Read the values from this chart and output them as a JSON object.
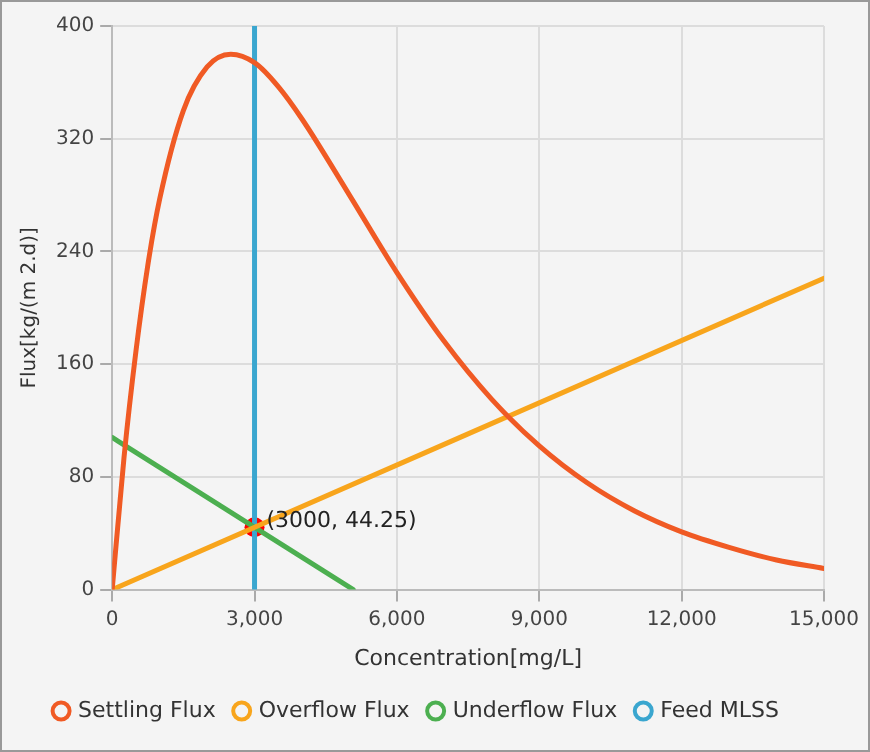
{
  "chart_data": {
    "type": "line",
    "xlabel": "Concentration[mg/L]",
    "ylabel": "Flux[kg/(m 2.d)]",
    "xlim": [
      0,
      15000
    ],
    "ylim": [
      0,
      400
    ],
    "xticks": [
      0,
      {
        "value": 3000,
        "label": "3,000"
      },
      {
        "value": 6000,
        "label": "6,000"
      },
      {
        "value": 9000,
        "label": "9,000"
      },
      {
        "value": 12000,
        "label": "12,000"
      },
      {
        "value": 15000,
        "label": "15,000"
      }
    ],
    "yticks": [
      0,
      80,
      160,
      240,
      320,
      400
    ],
    "grid": true,
    "legend": "bottom",
    "marker": "none",
    "line_style": "solid",
    "series": [
      {
        "name": "Settling Flux",
        "color": "#f05a24",
        "type": "line",
        "x": [
          0,
          250,
          500,
          750,
          1000,
          1500,
          2000,
          2500,
          3000,
          3500,
          4000,
          5000,
          6000,
          7000,
          8000,
          9000,
          10000,
          11000,
          12000,
          13000,
          14000,
          15000
        ],
        "values": [
          0,
          94,
          169,
          230,
          277,
          340,
          371,
          380,
          374,
          357,
          334,
          280,
          225,
          176,
          135,
          102,
          76,
          56,
          41,
          30,
          21,
          15
        ]
      },
      {
        "name": "Overflow Flux",
        "color": "#f8a51c",
        "type": "line",
        "x": [
          0,
          15000
        ],
        "values": [
          0,
          221
        ]
      },
      {
        "name": "Underflow Flux",
        "color": "#4caf50",
        "type": "line",
        "x": [
          0,
          5080
        ],
        "values": [
          108,
          0
        ]
      },
      {
        "name": "Feed MLSS",
        "color": "#3aa6cf",
        "type": "line",
        "x": [
          3000,
          3000
        ],
        "values": [
          0,
          400
        ]
      },
      {
        "color": "#ff0000",
        "type": "scatter",
        "marker": "circle",
        "x": [
          3000
        ],
        "values": [
          44.25
        ],
        "value_labels": [
          "(3000, 44.25)"
        ]
      }
    ]
  }
}
